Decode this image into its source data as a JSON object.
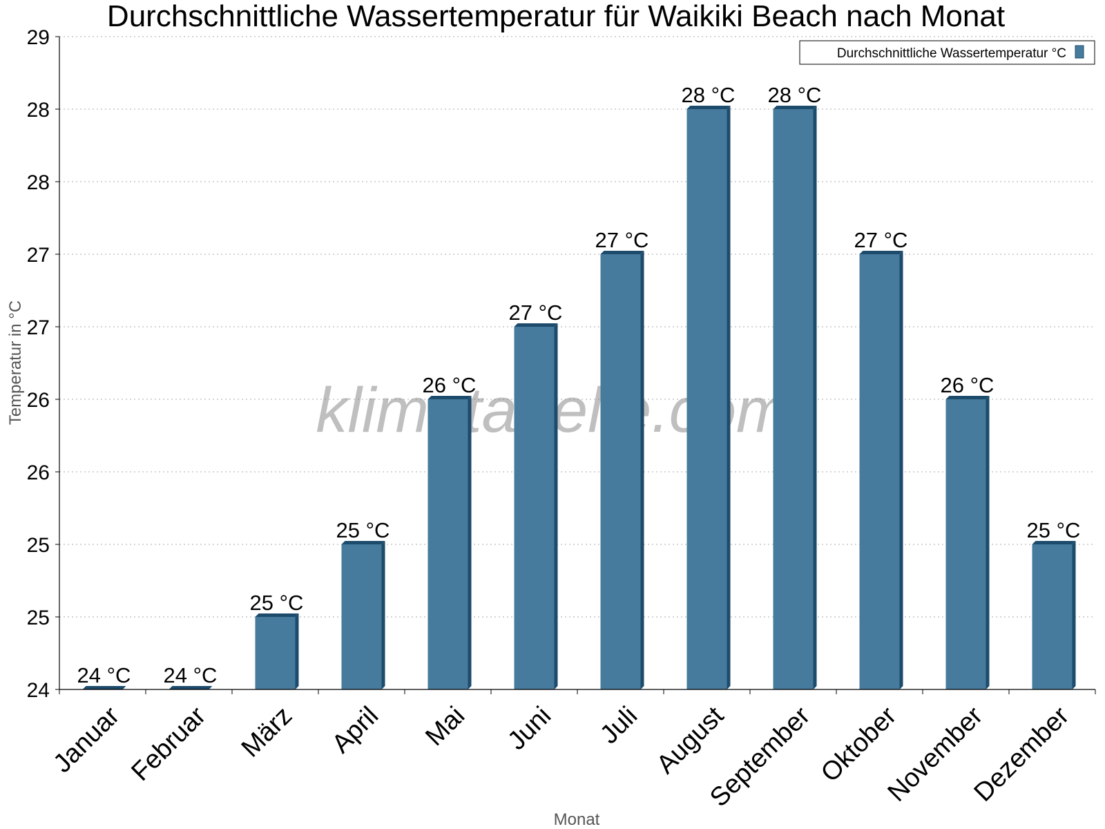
{
  "colors": {
    "bar_face": "#467b9d",
    "bar_side": "#1d4b6b",
    "bar_top": "#1d4b6b",
    "grid": "#bbbbbb",
    "axis": "#000000"
  },
  "watermark": "klimatabelle.com",
  "chart_data": {
    "type": "bar",
    "title": "Durchschnittliche Wassertemperatur für Waikiki Beach nach Monat",
    "xlabel": "Monat",
    "ylabel": "Temperatur in °C",
    "ylim": [
      24,
      28.5
    ],
    "yticks": [
      24,
      24.5,
      25,
      25.5,
      26,
      26.5,
      27,
      27.5,
      28,
      28.5
    ],
    "ytick_labels": [
      "24",
      "25",
      "25",
      "26",
      "26",
      "27",
      "27",
      "28",
      "28",
      "29"
    ],
    "categories": [
      "Januar",
      "Februar",
      "März",
      "April",
      "Mai",
      "Juni",
      "Juli",
      "August",
      "September",
      "Oktober",
      "November",
      "Dezember"
    ],
    "series": [
      {
        "name": "Durchschnittliche Wassertemperatur °C",
        "values": [
          24.0,
          24.0,
          24.5,
          25.0,
          26.0,
          26.5,
          27.0,
          28.0,
          28.0,
          27.0,
          26.0,
          25.0
        ],
        "labels": [
          "24 °C",
          "24 °C",
          "25 °C",
          "25 °C",
          "26 °C",
          "27 °C",
          "27 °C",
          "28 °C",
          "28 °C",
          "27 °C",
          "26 °C",
          "25 °C"
        ]
      }
    ],
    "grid": true,
    "legend": "top-right"
  }
}
